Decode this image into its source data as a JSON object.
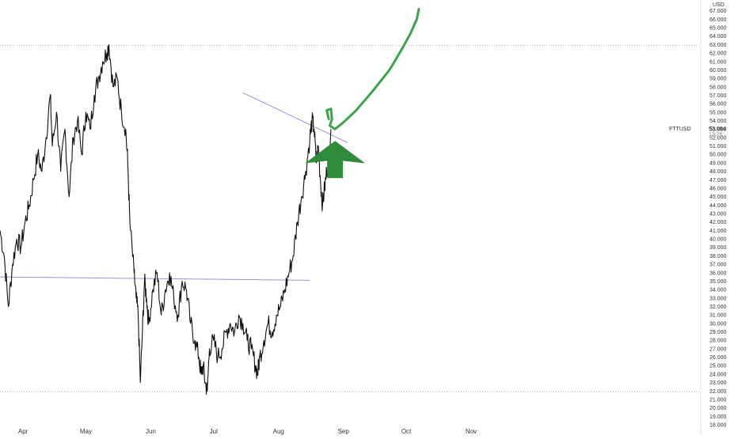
{
  "chart_data": {
    "type": "line",
    "symbol": "FTTUSD",
    "currency": "USD",
    "last_price": "53.084",
    "countdown": "13:26",
    "y_range": [
      18,
      68
    ],
    "y_ticks": [
      "18.000",
      "19.000",
      "20.000",
      "21.000",
      "22.000",
      "23.000",
      "24.000",
      "25.000",
      "26.000",
      "27.000",
      "28.000",
      "29.000",
      "30.000",
      "31.000",
      "32.000",
      "33.000",
      "34.000",
      "35.000",
      "36.000",
      "37.000",
      "38.000",
      "39.000",
      "40.000",
      "41.000",
      "42.000",
      "43.000",
      "44.000",
      "45.000",
      "46.000",
      "47.000",
      "48.000",
      "49.000",
      "50.000",
      "51.000",
      "52.000",
      "53.000",
      "54.000",
      "55.000",
      "56.000",
      "57.000",
      "58.000",
      "59.000",
      "60.000",
      "61.000",
      "62.000",
      "63.000",
      "64.000",
      "65.000",
      "66.000",
      "67.000"
    ],
    "x_ticks": [
      "Apr",
      "May",
      "Jun",
      "Jul",
      "Aug",
      "Sep",
      "Oct",
      "Nov"
    ],
    "x_tick_days": [
      31,
      61,
      92,
      122,
      153,
      184,
      214,
      245
    ],
    "x_range": [
      20,
      262
    ],
    "series": [
      {
        "color": "#111111",
        "points": [
          [
            20,
            41
          ],
          [
            22,
            38
          ],
          [
            24,
            32
          ],
          [
            26,
            37
          ],
          [
            28,
            40
          ],
          [
            30,
            39
          ],
          [
            32,
            42
          ],
          [
            34,
            44
          ],
          [
            36,
            47
          ],
          [
            38,
            50
          ],
          [
            40,
            48
          ],
          [
            42,
            52
          ],
          [
            44,
            57
          ],
          [
            45,
            51
          ],
          [
            47,
            55
          ],
          [
            49,
            48
          ],
          [
            51,
            53
          ],
          [
            53,
            45
          ],
          [
            55,
            52
          ],
          [
            57,
            54
          ],
          [
            59,
            50
          ],
          [
            61,
            55
          ],
          [
            63,
            53
          ],
          [
            65,
            57
          ],
          [
            67,
            59
          ],
          [
            69,
            61
          ],
          [
            71,
            62
          ],
          [
            72,
            63
          ],
          [
            74,
            58
          ],
          [
            76,
            59
          ],
          [
            78,
            55
          ],
          [
            80,
            53
          ],
          [
            81,
            49
          ],
          [
            82,
            42
          ],
          [
            84,
            36
          ],
          [
            85,
            33
          ],
          [
            86,
            31
          ],
          [
            87,
            23
          ],
          [
            88,
            29
          ],
          [
            89,
            35
          ],
          [
            90,
            33
          ],
          [
            91,
            30
          ],
          [
            93,
            34
          ],
          [
            95,
            36
          ],
          [
            97,
            31
          ],
          [
            99,
            34
          ],
          [
            101,
            36
          ],
          [
            103,
            33
          ],
          [
            105,
            31
          ],
          [
            107,
            35
          ],
          [
            109,
            34
          ],
          [
            111,
            30
          ],
          [
            113,
            28
          ],
          [
            115,
            26
          ],
          [
            116,
            24
          ],
          [
            117,
            25
          ],
          [
            118,
            23
          ],
          [
            119,
            22
          ],
          [
            120,
            27
          ],
          [
            122,
            28
          ],
          [
            124,
            26
          ],
          [
            126,
            27
          ],
          [
            128,
            29
          ],
          [
            130,
            30
          ],
          [
            132,
            29
          ],
          [
            134,
            31
          ],
          [
            136,
            30
          ],
          [
            138,
            28
          ],
          [
            140,
            27
          ],
          [
            142,
            25
          ],
          [
            143,
            24
          ],
          [
            144,
            26
          ],
          [
            146,
            28
          ],
          [
            148,
            30
          ],
          [
            150,
            29
          ],
          [
            152,
            31
          ],
          [
            154,
            32
          ],
          [
            156,
            34
          ],
          [
            158,
            36
          ],
          [
            160,
            38
          ],
          [
            162,
            42
          ],
          [
            164,
            45
          ],
          [
            166,
            48
          ],
          [
            168,
            52
          ],
          [
            169,
            54
          ],
          [
            170,
            53
          ],
          [
            171,
            49
          ],
          [
            172,
            51
          ],
          [
            173,
            47
          ],
          [
            174,
            44
          ],
          [
            175,
            46
          ],
          [
            176,
            48
          ],
          [
            177,
            50
          ],
          [
            178,
            53
          ]
        ]
      }
    ],
    "horizontal_levels": [
      62.9,
      21.9
    ],
    "trendlines": [
      {
        "x1": 20,
        "y1": 35.5,
        "x2": 168,
        "y2": 35.1
      },
      {
        "x1": 136,
        "y1": 57.3,
        "x2": 186,
        "y2": 51.4
      }
    ],
    "arrow": {
      "x": 180,
      "y_base": 47.2,
      "y_top": 51.6
    },
    "projection": [
      [
        177,
        54.2
      ],
      [
        176,
        55.2
      ],
      [
        178,
        55.4
      ],
      [
        178.5,
        54.2
      ],
      [
        177.5,
        53.4
      ],
      [
        180,
        53
      ],
      [
        184,
        53.8
      ],
      [
        190,
        55.2
      ],
      [
        198,
        57.5
      ],
      [
        206,
        60
      ],
      [
        212,
        62.5
      ],
      [
        216,
        64.3
      ],
      [
        219,
        66
      ],
      [
        220,
        67.2
      ]
    ]
  }
}
